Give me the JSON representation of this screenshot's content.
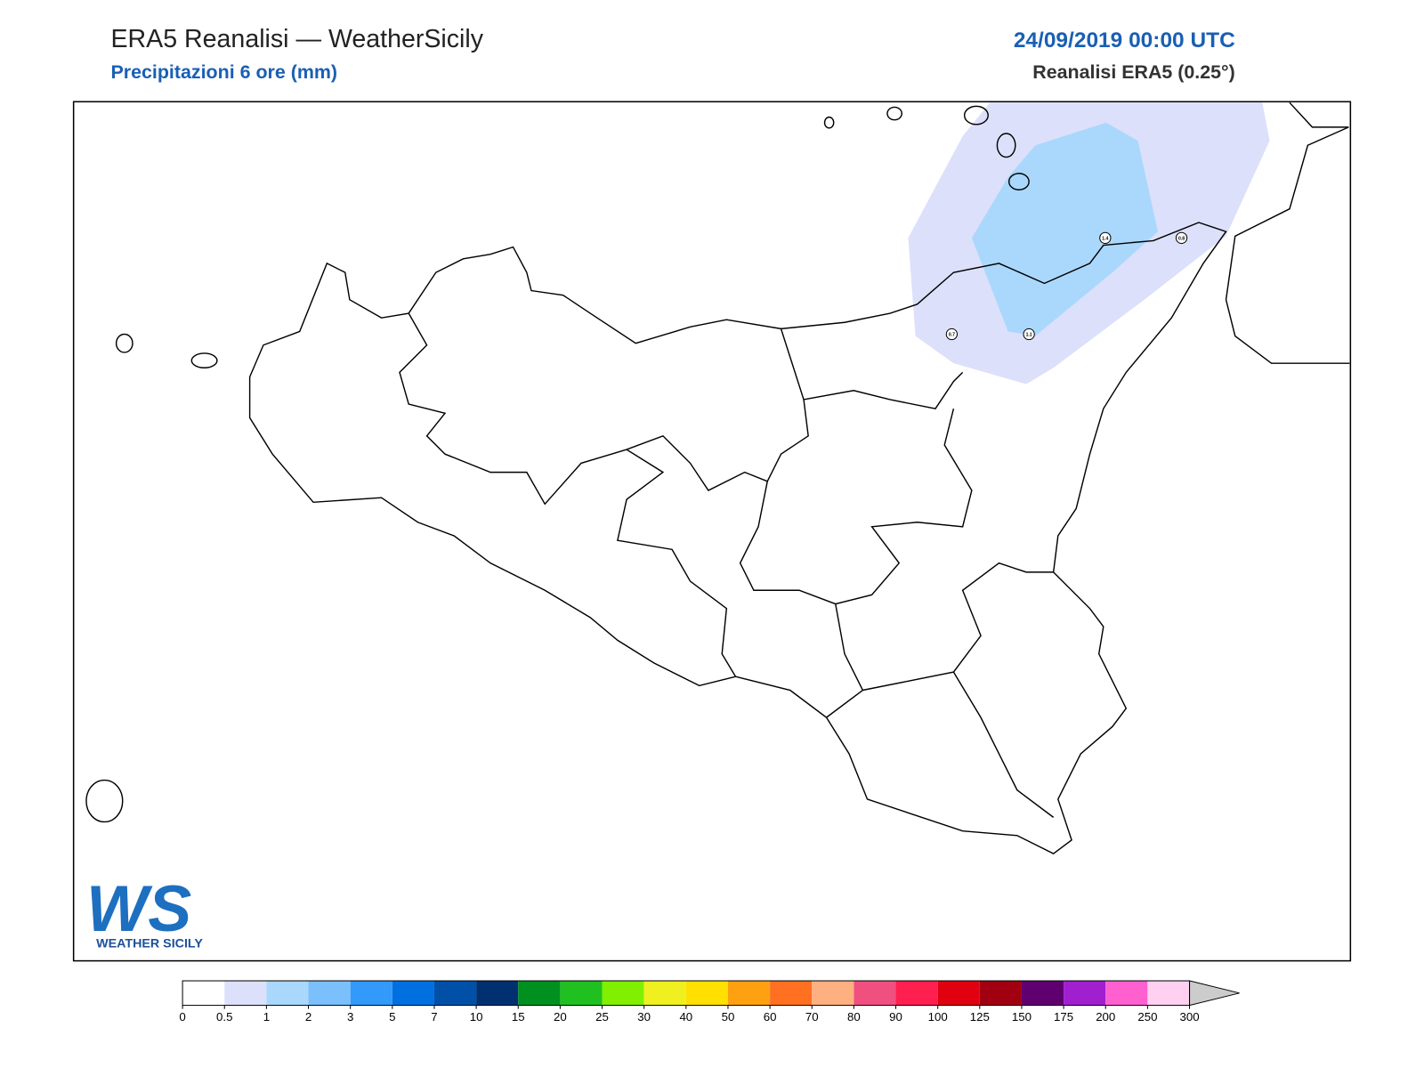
{
  "header": {
    "title": "ERA5 Reanalisi — WeatherSicily",
    "subtitle": "Precipitazioni 6 ore (mm)",
    "date": "24/09/2019 00:00 UTC",
    "model": "Reanalisi ERA5 (0.25°)"
  },
  "stations": [
    {
      "value": 0.7
    },
    {
      "value": 1.1
    },
    {
      "value": 1.4
    },
    {
      "value": 0.8
    }
  ],
  "logo": {
    "mark": "WS",
    "name": "WEATHER SICILY"
  },
  "colorbar": {
    "bounds": [
      0,
      0.5,
      1,
      2,
      3,
      5,
      7,
      10,
      15,
      20,
      25,
      30,
      40,
      50,
      60,
      70,
      80,
      90,
      100,
      125,
      150,
      175,
      200,
      250,
      300
    ],
    "colors": [
      "#ffffff",
      "#dde0fb",
      "#aad8fc",
      "#7bc0fc",
      "#3399fb",
      "#0070e0",
      "#0050a8",
      "#003070",
      "#009020",
      "#20c020",
      "#80f000",
      "#f0f020",
      "#ffe000",
      "#ffa010",
      "#ff7020",
      "#ffb080",
      "#f05080",
      "#ff2050",
      "#e00010",
      "#a00010",
      "#600070",
      "#a020d0",
      "#ff60d0",
      "#ffd0f0"
    ],
    "extend_color": "#cccccc"
  }
}
